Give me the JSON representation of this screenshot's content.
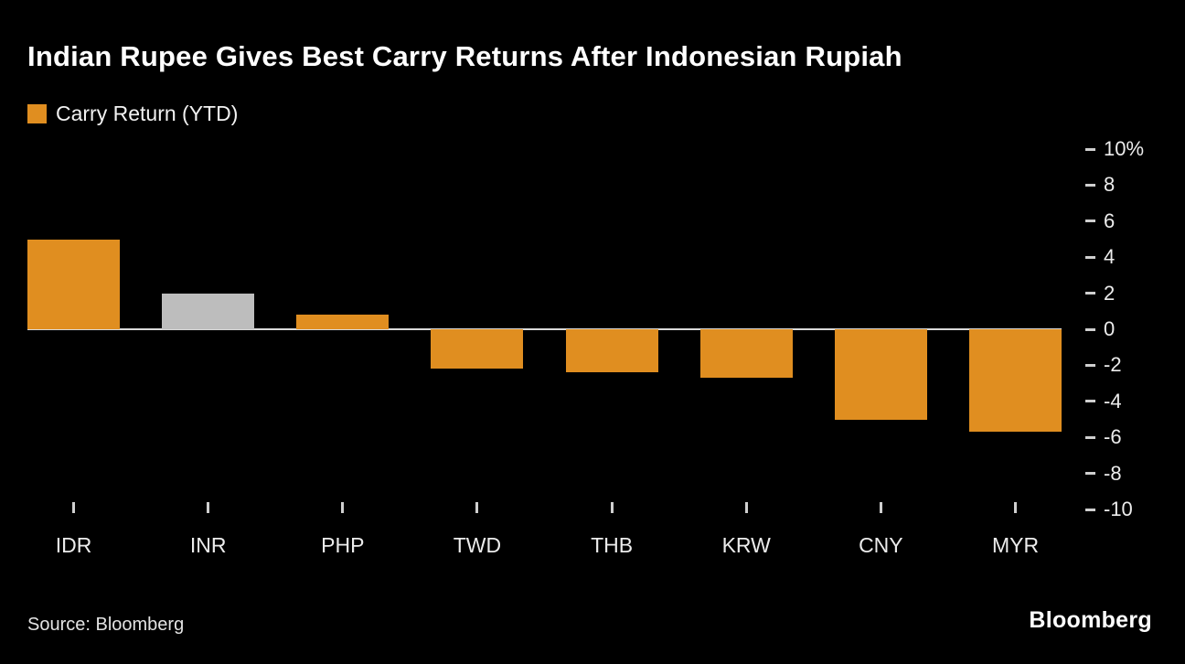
{
  "header": {
    "title": "Indian Rupee Gives Best Carry Returns After Indonesian Rupiah",
    "legend_label": "Carry Return (YTD)"
  },
  "chart_data": {
    "type": "bar",
    "title": "Indian Rupee Gives Best Carry Returns After Indonesian Rupiah",
    "legend": [
      "Carry Return (YTD)"
    ],
    "legend_position": "top-left",
    "categories": [
      "IDR",
      "INR",
      "PHP",
      "TWD",
      "THB",
      "KRW",
      "CNY",
      "MYR"
    ],
    "series": [
      {
        "name": "Carry Return (YTD)",
        "values": [
          5.0,
          2.0,
          0.8,
          -2.2,
          -2.4,
          -2.7,
          -5.0,
          -5.7
        ]
      }
    ],
    "bar_colors": [
      "#E08E20",
      "#BDBDBD",
      "#E08E20",
      "#E08E20",
      "#E08E20",
      "#E08E20",
      "#E08E20",
      "#E08E20"
    ],
    "xlabel": "",
    "ylabel": "",
    "ylim": [
      -10,
      10
    ],
    "yticks": [
      10,
      8,
      6,
      4,
      2,
      0,
      -2,
      -4,
      -6,
      -8,
      -10
    ],
    "ytick_labels": [
      "10%",
      "8",
      "6",
      "4",
      "2",
      "0",
      "-2",
      "-4",
      "-6",
      "-8",
      "-10"
    ],
    "yaxis_side": "right",
    "grid": false,
    "accent_color": "#E08E20",
    "muted_bar_color": "#BDBDBD",
    "background_color": "#000000",
    "zero_line_color": "#D9D9D9"
  },
  "footer": {
    "source": "Source: Bloomberg",
    "brand": "Bloomberg"
  }
}
